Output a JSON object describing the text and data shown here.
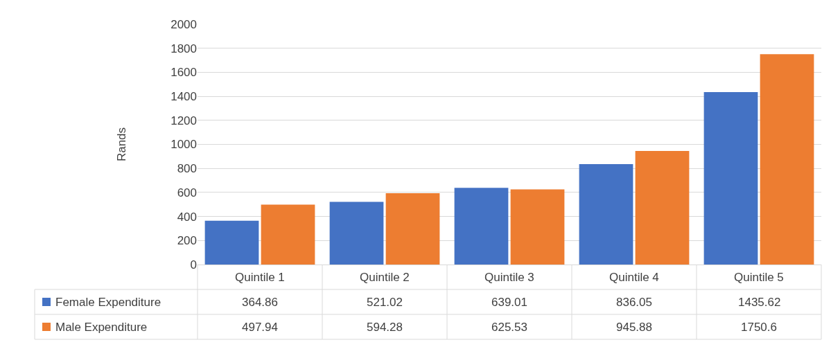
{
  "chart_data": {
    "type": "bar",
    "ylabel": "Rands",
    "categories": [
      "Quintile 1",
      "Quintile 2",
      "Quintile 3",
      "Quintile 4",
      "Quintile 5"
    ],
    "series": [
      {
        "name": "Female Expenditure",
        "color": "#4472c4",
        "values": [
          364.86,
          521.02,
          639.01,
          836.05,
          1435.62
        ]
      },
      {
        "name": "Male Expenditure",
        "color": "#ed7d31",
        "values": [
          497.94,
          594.28,
          625.53,
          945.88,
          1750.6
        ]
      }
    ],
    "ylim": [
      0,
      2000
    ],
    "yticks": [
      0,
      200,
      400,
      600,
      800,
      1000,
      1200,
      1400,
      1600,
      1800,
      2000
    ],
    "grid": "y",
    "data_labels": true,
    "legend": "bottom left"
  }
}
